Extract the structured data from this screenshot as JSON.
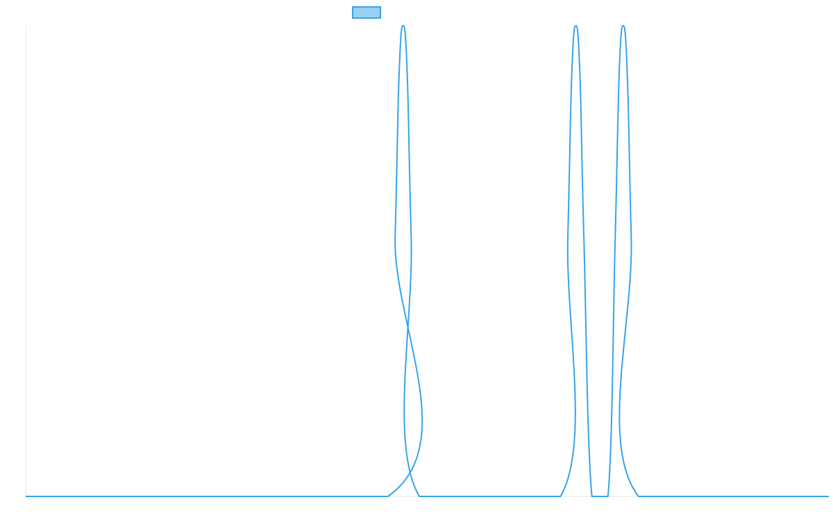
{
  "chart_data": {
    "type": "line",
    "title": "",
    "xlabel": "",
    "ylabel": "",
    "x_range": [
      0,
      100
    ],
    "ylim": [
      0,
      1
    ],
    "grid": false,
    "legend": {
      "placement": "top-center",
      "entries": [
        {
          "name": "",
          "color": "#36a2eb",
          "fill": "#9ad0f5"
        }
      ]
    },
    "series": [
      {
        "color": "#36a2eb",
        "x": [
          0,
          45.1,
          46.0,
          46.5,
          47.0,
          47.5,
          48.0,
          49.0,
          66.6,
          67.5,
          68.0,
          68.5,
          69.0,
          69.5,
          70.5,
          72.5,
          73.4,
          73.9,
          74.4,
          74.9,
          75.4,
          76.3,
          100
        ],
        "y": [
          0,
          0,
          0.55,
          0.9,
          1.0,
          0.9,
          0.55,
          0,
          0,
          0.55,
          0.9,
          1.0,
          0.9,
          0.55,
          0,
          0,
          0.55,
          0.9,
          1.0,
          0.9,
          0.55,
          0,
          0
        ]
      }
    ]
  }
}
